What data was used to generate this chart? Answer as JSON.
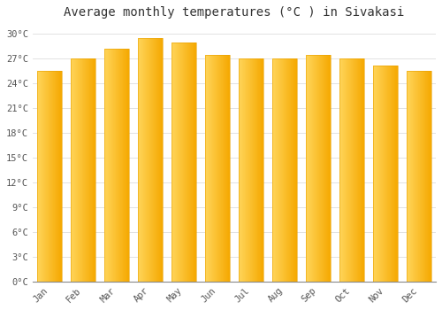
{
  "title": "Average monthly temperatures (°C ) in Sivakasi",
  "months": [
    "Jan",
    "Feb",
    "Mar",
    "Apr",
    "May",
    "Jun",
    "Jul",
    "Aug",
    "Sep",
    "Oct",
    "Nov",
    "Dec"
  ],
  "temperatures": [
    25.5,
    27.0,
    28.2,
    29.5,
    29.0,
    27.5,
    27.0,
    27.0,
    27.5,
    27.0,
    26.2,
    25.5
  ],
  "bar_color_left": "#FFD55A",
  "bar_color_right": "#F5A800",
  "bar_edge_color": "#E8A000",
  "background_color": "#FFFFFF",
  "plot_bg_color": "#FFFFFF",
  "grid_color": "#DDDDDD",
  "ylim": [
    0,
    31
  ],
  "yticks": [
    0,
    3,
    6,
    9,
    12,
    15,
    18,
    21,
    24,
    27,
    30
  ],
  "ytick_labels": [
    "0°C",
    "3°C",
    "6°C",
    "9°C",
    "12°C",
    "15°C",
    "18°C",
    "21°C",
    "24°C",
    "27°C",
    "30°C"
  ],
  "title_fontsize": 10,
  "tick_fontsize": 7.5,
  "bar_width": 0.75
}
